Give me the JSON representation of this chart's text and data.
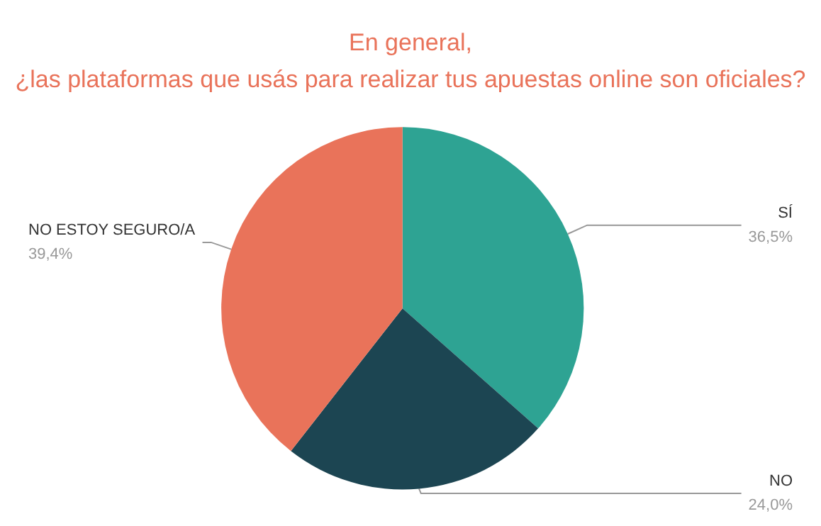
{
  "chart_data": {
    "type": "pie",
    "title": "En general,\n¿las plataformas que usás para realizar tus apuestas online son oficiales?",
    "categories": [
      "SÍ",
      "NO",
      "NO ESTOY SEGURO/A"
    ],
    "values": [
      36.5,
      24.0,
      39.4
    ],
    "colors": [
      "#2ea393",
      "#1c4552",
      "#e9735a"
    ],
    "value_labels": [
      "36,5%",
      "24,0%",
      "39,4%"
    ],
    "legend": false
  }
}
